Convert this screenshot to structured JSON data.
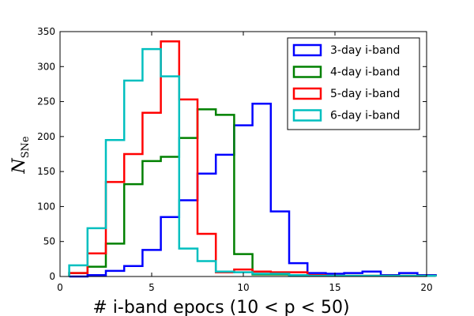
{
  "chart_data": {
    "type": "histogram-step",
    "title": "",
    "xlabel": "# i-band epocs (10 < p < 50)",
    "ylabel": "N_SNe",
    "xlim": [
      0,
      20
    ],
    "ylim": [
      0,
      350
    ],
    "xticks": [
      0,
      5,
      10,
      15,
      20
    ],
    "yticks": [
      0,
      50,
      100,
      150,
      200,
      250,
      300,
      350
    ],
    "bin_width": 1,
    "bin_start": 0.5,
    "legend_position": "top-right",
    "series": [
      {
        "name": "3-day i-band",
        "color": "#0000ff",
        "values": [
          0,
          2,
          8,
          15,
          38,
          85,
          109,
          147,
          174,
          216,
          247,
          93,
          19,
          5,
          4,
          5,
          7,
          2,
          5,
          2
        ]
      },
      {
        "name": "4-day i-band",
        "color": "#008000",
        "values": [
          5,
          14,
          47,
          132,
          165,
          171,
          198,
          239,
          231,
          32,
          3,
          3,
          2,
          1,
          1,
          1,
          1,
          1,
          1,
          1
        ]
      },
      {
        "name": "5-day i-band",
        "color": "#ff0000",
        "values": [
          5,
          33,
          135,
          175,
          234,
          336,
          253,
          61,
          6,
          10,
          7,
          6,
          6,
          2,
          1,
          1,
          1,
          1,
          1,
          1
        ]
      },
      {
        "name": "6-day i-band",
        "color": "#00bfbf",
        "values": [
          16,
          69,
          195,
          280,
          325,
          286,
          40,
          22,
          7,
          6,
          4,
          4,
          2,
          1,
          1,
          1,
          1,
          1,
          1,
          1
        ]
      }
    ]
  }
}
